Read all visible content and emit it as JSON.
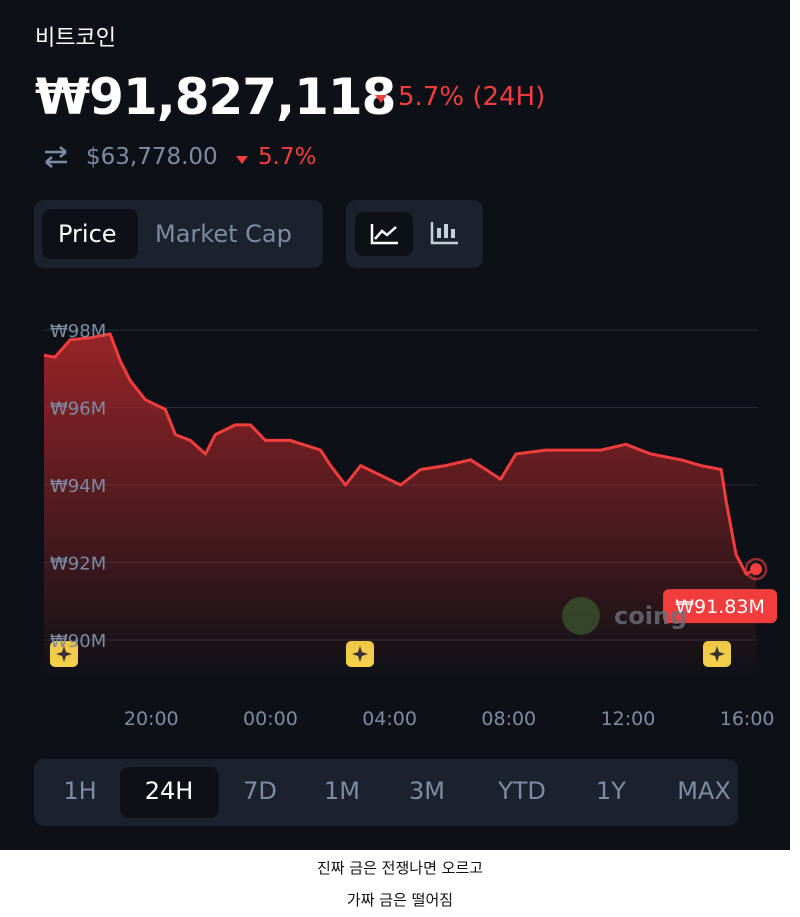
{
  "header": {
    "name": "비트코인",
    "price": "₩91,827,118",
    "change": "5.7% (24H)",
    "usd_price": "$63,778.00",
    "usd_change": "5.7%"
  },
  "tabs": [
    "Price",
    "Market Cap"
  ],
  "chart_data": {
    "type": "line",
    "x": [
      16.4,
      16.77,
      17.28,
      17.95,
      18.62,
      18.96,
      19.29,
      19.8,
      20.47,
      20.81,
      21.31,
      21.82,
      22.15,
      22.82,
      23.33,
      23.83,
      24.67,
      25.68,
      26.02,
      26.52,
      27.03,
      27.7,
      28.37,
      29.04,
      29.88,
      30.72,
      31.23,
      31.73,
      32.24,
      33.24,
      34.25,
      35.09,
      35.93,
      36.77,
      37.78,
      38.45,
      39.13,
      39.29,
      39.63,
      39.97,
      40.3
    ],
    "series": [
      {
        "color": "#f23d3d",
        "values": [
          97.35,
          97.3,
          97.75,
          97.8,
          97.9,
          97.2,
          96.7,
          96.2,
          95.95,
          95.3,
          95.15,
          94.8,
          95.3,
          95.55,
          95.55,
          95.15,
          95.15,
          94.9,
          94.5,
          94.0,
          94.5,
          94.25,
          94.0,
          94.4,
          94.5,
          94.65,
          94.4,
          94.15,
          94.8,
          94.9,
          94.9,
          94.9,
          95.05,
          94.8,
          94.65,
          94.5,
          94.4,
          93.6,
          92.2,
          91.7,
          91.83
        ],
        "value_labels": [
          null,
          null,
          null,
          null,
          null,
          null,
          null,
          null,
          null,
          null,
          null,
          null,
          null,
          null,
          null,
          null,
          null,
          null,
          null,
          null,
          null,
          null,
          null,
          null,
          null,
          null,
          null,
          null,
          null,
          null,
          null,
          null,
          null,
          null,
          null,
          null,
          null,
          null,
          null,
          null,
          "₩91.83M"
        ]
      }
    ],
    "xlim": [
      16.4,
      40.6
    ],
    "xticks": [
      {
        "value": 20,
        "label": "20:00"
      },
      {
        "value": 24,
        "label": "00:00"
      },
      {
        "value": 28,
        "label": "04:00"
      },
      {
        "value": 32,
        "label": "08:00"
      },
      {
        "value": 36,
        "label": "12:00"
      },
      {
        "value": 40,
        "label": "16:00"
      }
    ],
    "ylim": [
      89,
      99
    ],
    "yticks": [
      {
        "value": 90,
        "label": "₩90M"
      },
      {
        "value": 92,
        "label": "₩92M"
      },
      {
        "value": 94,
        "label": "₩94M"
      },
      {
        "value": 96,
        "label": "₩96M"
      },
      {
        "value": 98,
        "label": "₩98M"
      }
    ],
    "grid": true
  },
  "watermark": "coing",
  "ranges": [
    "1H",
    "24H",
    "7D",
    "1M",
    "3M",
    "YTD",
    "1Y",
    "MAX"
  ],
  "caption": [
    "진짜 금은 전쟁나면 오르고",
    "가짜 금은 떨어짐"
  ]
}
